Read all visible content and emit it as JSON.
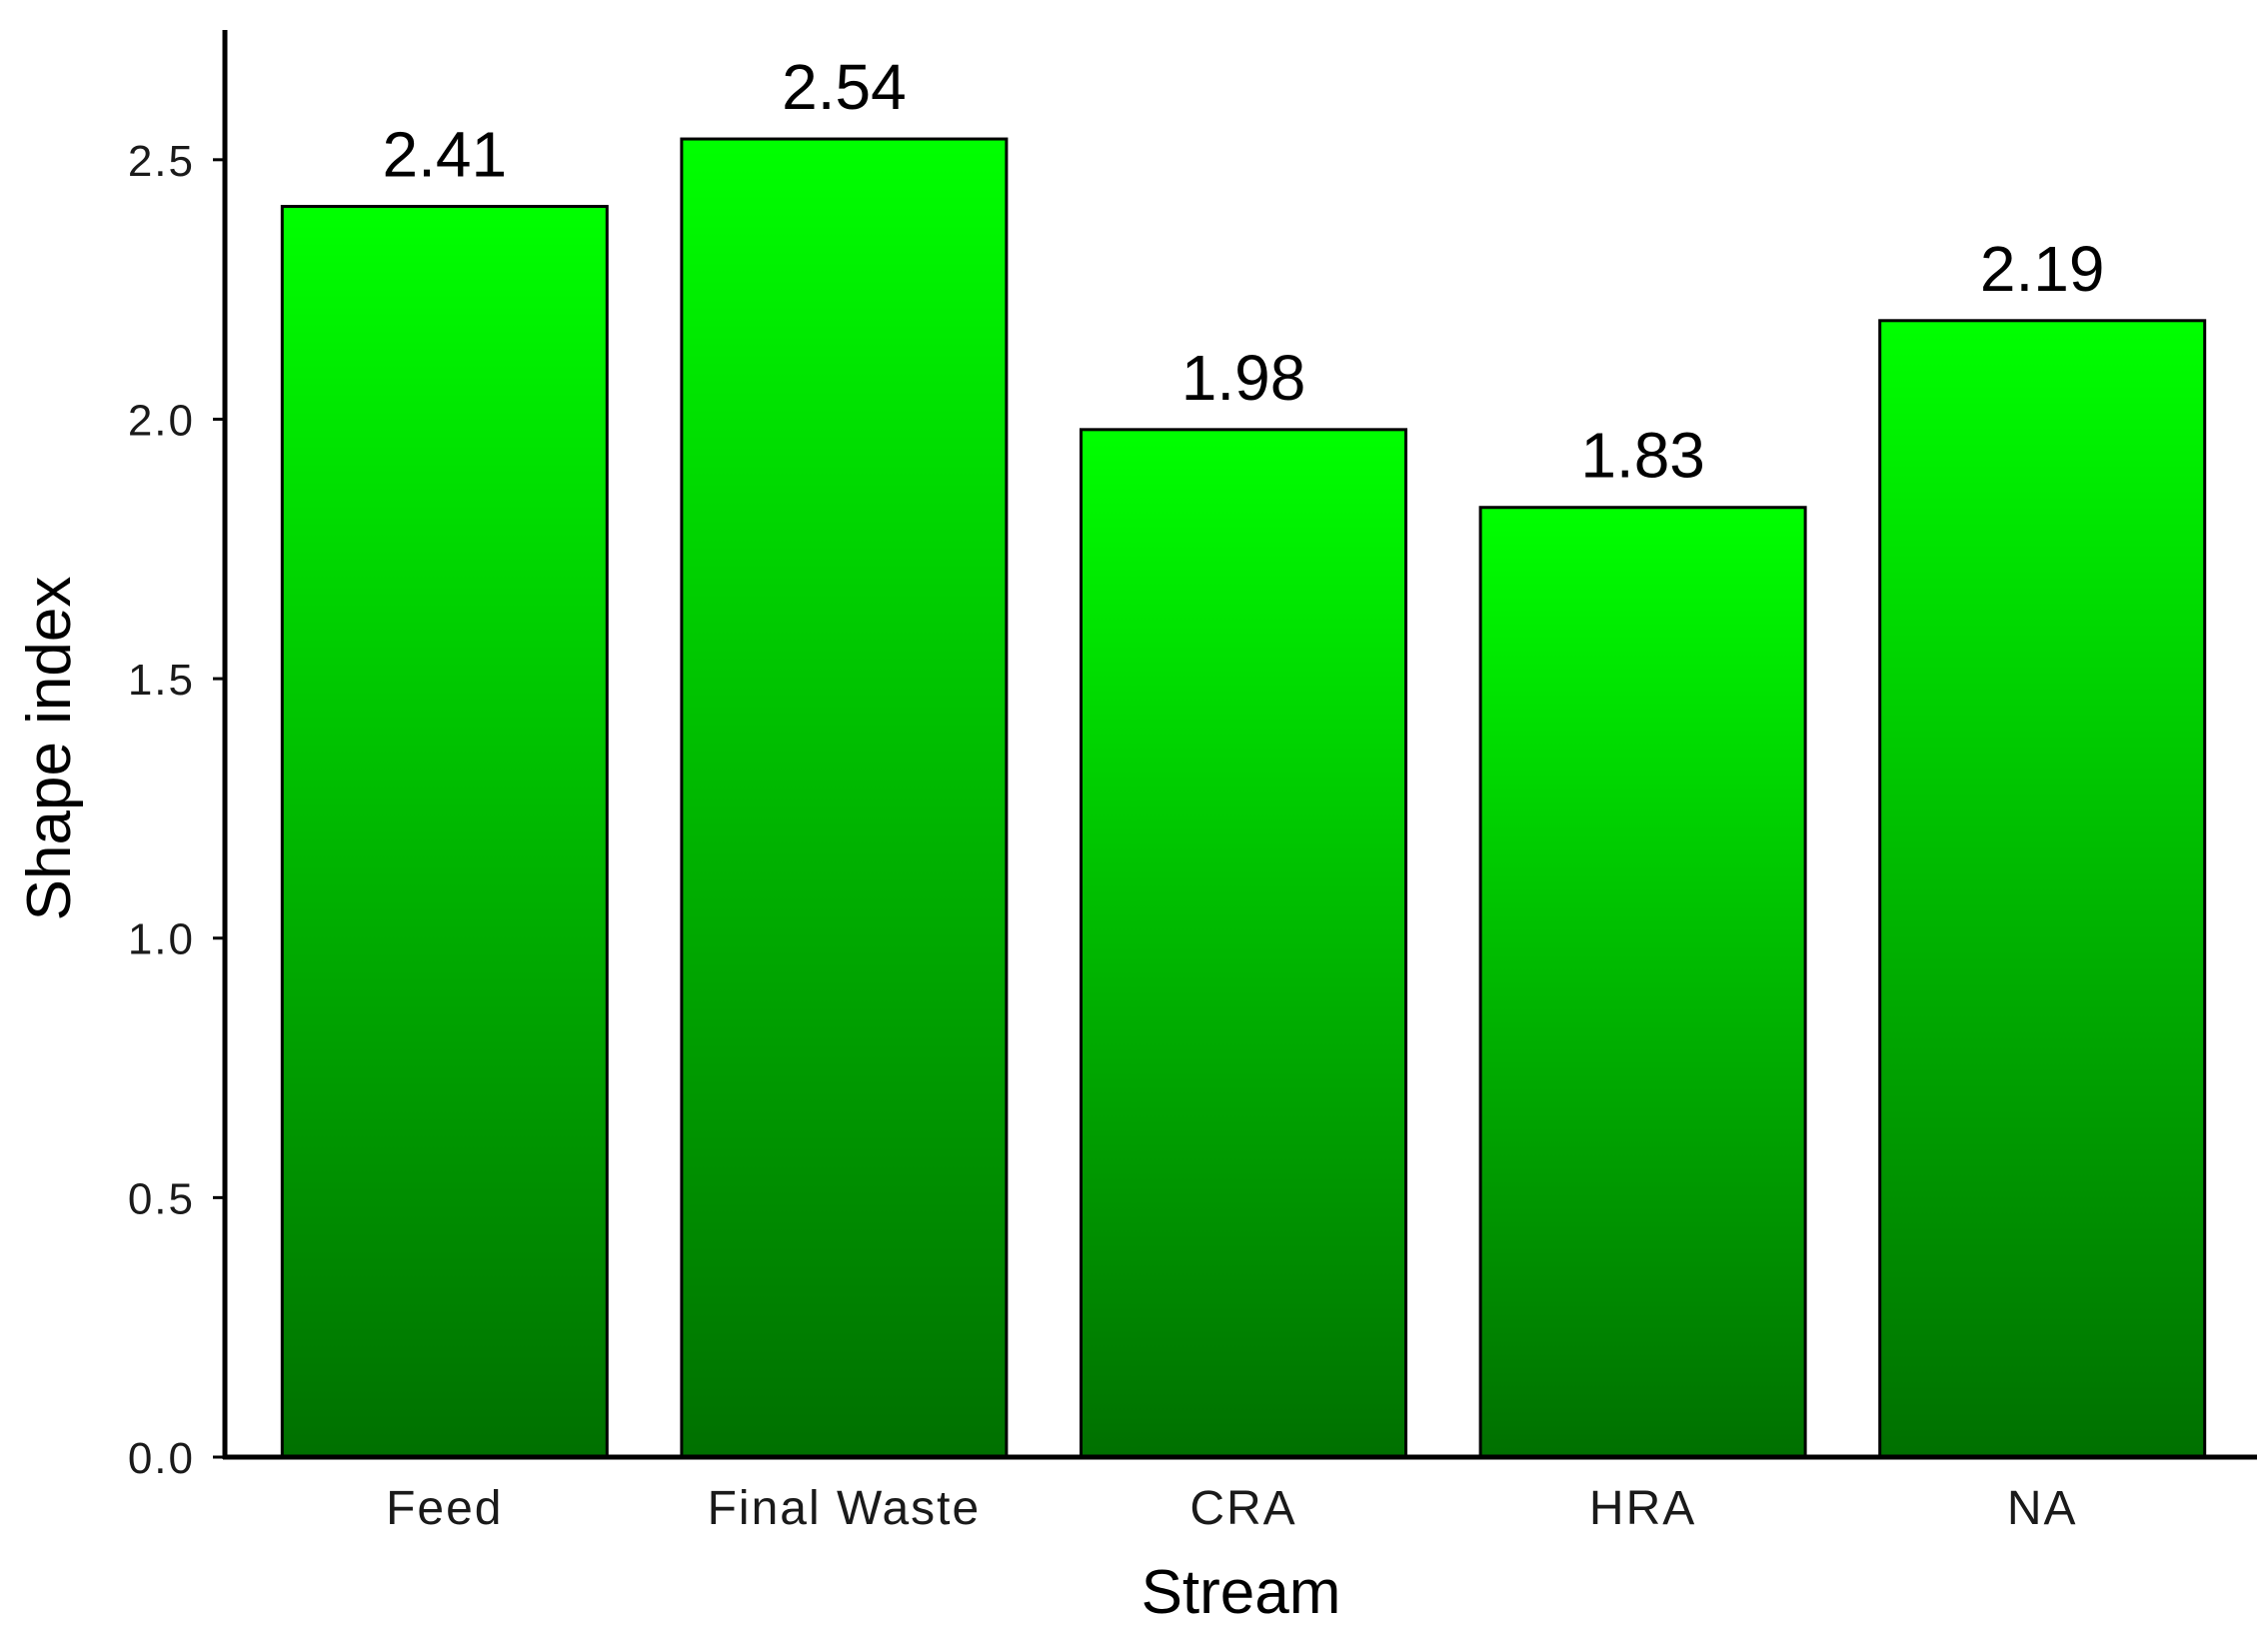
{
  "chart_data": {
    "type": "bar",
    "title": "",
    "xlabel": "Stream",
    "ylabel": "Shape index",
    "categories": [
      "Feed",
      "Final Waste",
      "CRA",
      "HRA",
      "NA"
    ],
    "values": [
      2.41,
      2.54,
      1.98,
      1.83,
      2.19
    ],
    "value_labels": [
      "2.41",
      "2.54",
      "1.98",
      "1.83",
      "2.19"
    ],
    "ylim": [
      0,
      2.75
    ],
    "yticks": [
      0.0,
      0.5,
      1.0,
      1.5,
      2.0,
      2.5
    ],
    "ytick_labels": [
      "0.0",
      "0.5",
      "1.0",
      "1.5",
      "2.0",
      "2.5"
    ],
    "grid": false,
    "legend": "none",
    "colors": {
      "bar_top": "#00ff00",
      "bar_bottom": "#007000",
      "bar_outline": "#000000",
      "axis": "#000000"
    }
  }
}
